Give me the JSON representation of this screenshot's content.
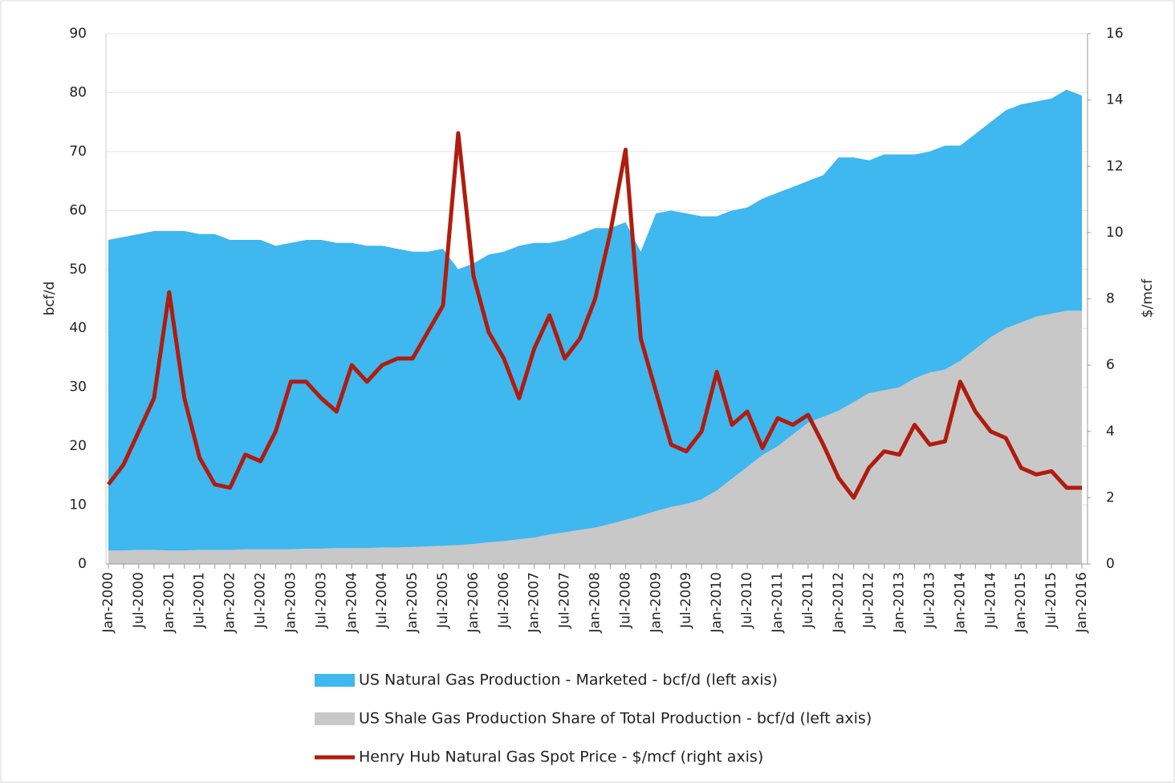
{
  "chart_data": {
    "type": "area",
    "categories": [
      "Jan-2000",
      null,
      "Jul-2000",
      null,
      "Jan-2001",
      null,
      "Jul-2001",
      null,
      "Jan-2002",
      null,
      "Jul-2002",
      null,
      "Jan-2003",
      null,
      "Jul-2003",
      null,
      "Jan-2004",
      null,
      "Jul-2004",
      null,
      "Jan-2005",
      null,
      "Jul-2005",
      null,
      "Jan-2006",
      null,
      "Jul-2006",
      null,
      "Jan-2007",
      null,
      "Jul-2007",
      null,
      "Jan-2008",
      null,
      "Jul-2008",
      null,
      "Jan-2009",
      null,
      "Jul-2009",
      null,
      "Jan-2010",
      null,
      "Jul-2010",
      null,
      "Jan-2011",
      null,
      "Jul-2011",
      null,
      "Jan-2012",
      null,
      "Jul-2012",
      null,
      "Jan-2013",
      null,
      "Jul-2013",
      null,
      "Jan-2014",
      null,
      "Jul-2014",
      null,
      "Jan-2015",
      null,
      "Jul-2015",
      null,
      "Jan-2016"
    ],
    "series": [
      {
        "name": "US Natural Gas Production - Marketed - bcf/d (left axis)",
        "type": "area",
        "axis": "y",
        "color": "#3fb7ef",
        "values": [
          55,
          55.5,
          56,
          56.5,
          56.5,
          56.5,
          56,
          56,
          55,
          55,
          55,
          54,
          54.5,
          55,
          55,
          54.5,
          54.5,
          54,
          54,
          53.5,
          53,
          53,
          53.5,
          50,
          51,
          52.5,
          53,
          54,
          54.5,
          54.5,
          55,
          56,
          57,
          57,
          58,
          53,
          59.5,
          60,
          59.5,
          59,
          59,
          60,
          60.5,
          62,
          63,
          64,
          65,
          66,
          69,
          69,
          68.5,
          69.5,
          69.5,
          69.5,
          70,
          71,
          71,
          73,
          75,
          77,
          78,
          78.5,
          79,
          80.5,
          79.5
        ]
      },
      {
        "name": "US Shale Gas Production Share of Total Production - bcf/d (left axis)",
        "type": "area",
        "axis": "y",
        "color": "#c8c8c8",
        "values": [
          2.3,
          2.3,
          2.4,
          2.4,
          2.3,
          2.3,
          2.4,
          2.4,
          2.4,
          2.5,
          2.5,
          2.5,
          2.5,
          2.6,
          2.6,
          2.7,
          2.7,
          2.7,
          2.8,
          2.8,
          2.9,
          3.0,
          3.1,
          3.2,
          3.4,
          3.7,
          3.9,
          4.2,
          4.5,
          5.0,
          5.4,
          5.8,
          6.2,
          6.8,
          7.5,
          8.2,
          9,
          9.7,
          10.2,
          11,
          12.5,
          14.5,
          16.5,
          18.5,
          20,
          22,
          24,
          25,
          26,
          27.5,
          29,
          29.5,
          30,
          31.5,
          32.5,
          33,
          34.5,
          36.5,
          38.5,
          40,
          41,
          42,
          42.5,
          43,
          43
        ]
      },
      {
        "name": "Henry Hub Natural Gas Spot Price - $/mcf (right axis)",
        "type": "line",
        "axis": "y2",
        "color": "#b01c0e",
        "values": [
          2.4,
          3.0,
          4.0,
          5.0,
          8.2,
          5.0,
          3.2,
          2.4,
          2.3,
          3.3,
          3.1,
          4.0,
          5.5,
          5.5,
          5.0,
          4.6,
          6.0,
          5.5,
          6.0,
          6.2,
          6.2,
          7.0,
          7.8,
          13.0,
          8.7,
          7.0,
          6.2,
          5.0,
          6.5,
          7.5,
          6.2,
          6.8,
          8.0,
          10.0,
          12.5,
          6.8,
          5.2,
          3.6,
          3.4,
          4.0,
          5.8,
          4.2,
          4.6,
          3.5,
          4.4,
          4.2,
          4.5,
          3.6,
          2.6,
          2.0,
          2.9,
          3.4,
          3.3,
          4.2,
          3.6,
          3.7,
          5.5,
          4.6,
          4.0,
          3.8,
          2.9,
          2.7,
          2.8,
          2.3,
          2.3
        ]
      }
    ],
    "ylabel": "bcf/d",
    "y2label": "$/mcf",
    "ylim": [
      0,
      90
    ],
    "yticks": [
      0,
      10,
      20,
      30,
      40,
      50,
      60,
      70,
      80,
      90
    ],
    "y2lim": [
      0,
      16
    ],
    "y2ticks": [
      0,
      2,
      4,
      6,
      8,
      10,
      12,
      14,
      16
    ],
    "grid": true,
    "legend": "bottom"
  }
}
